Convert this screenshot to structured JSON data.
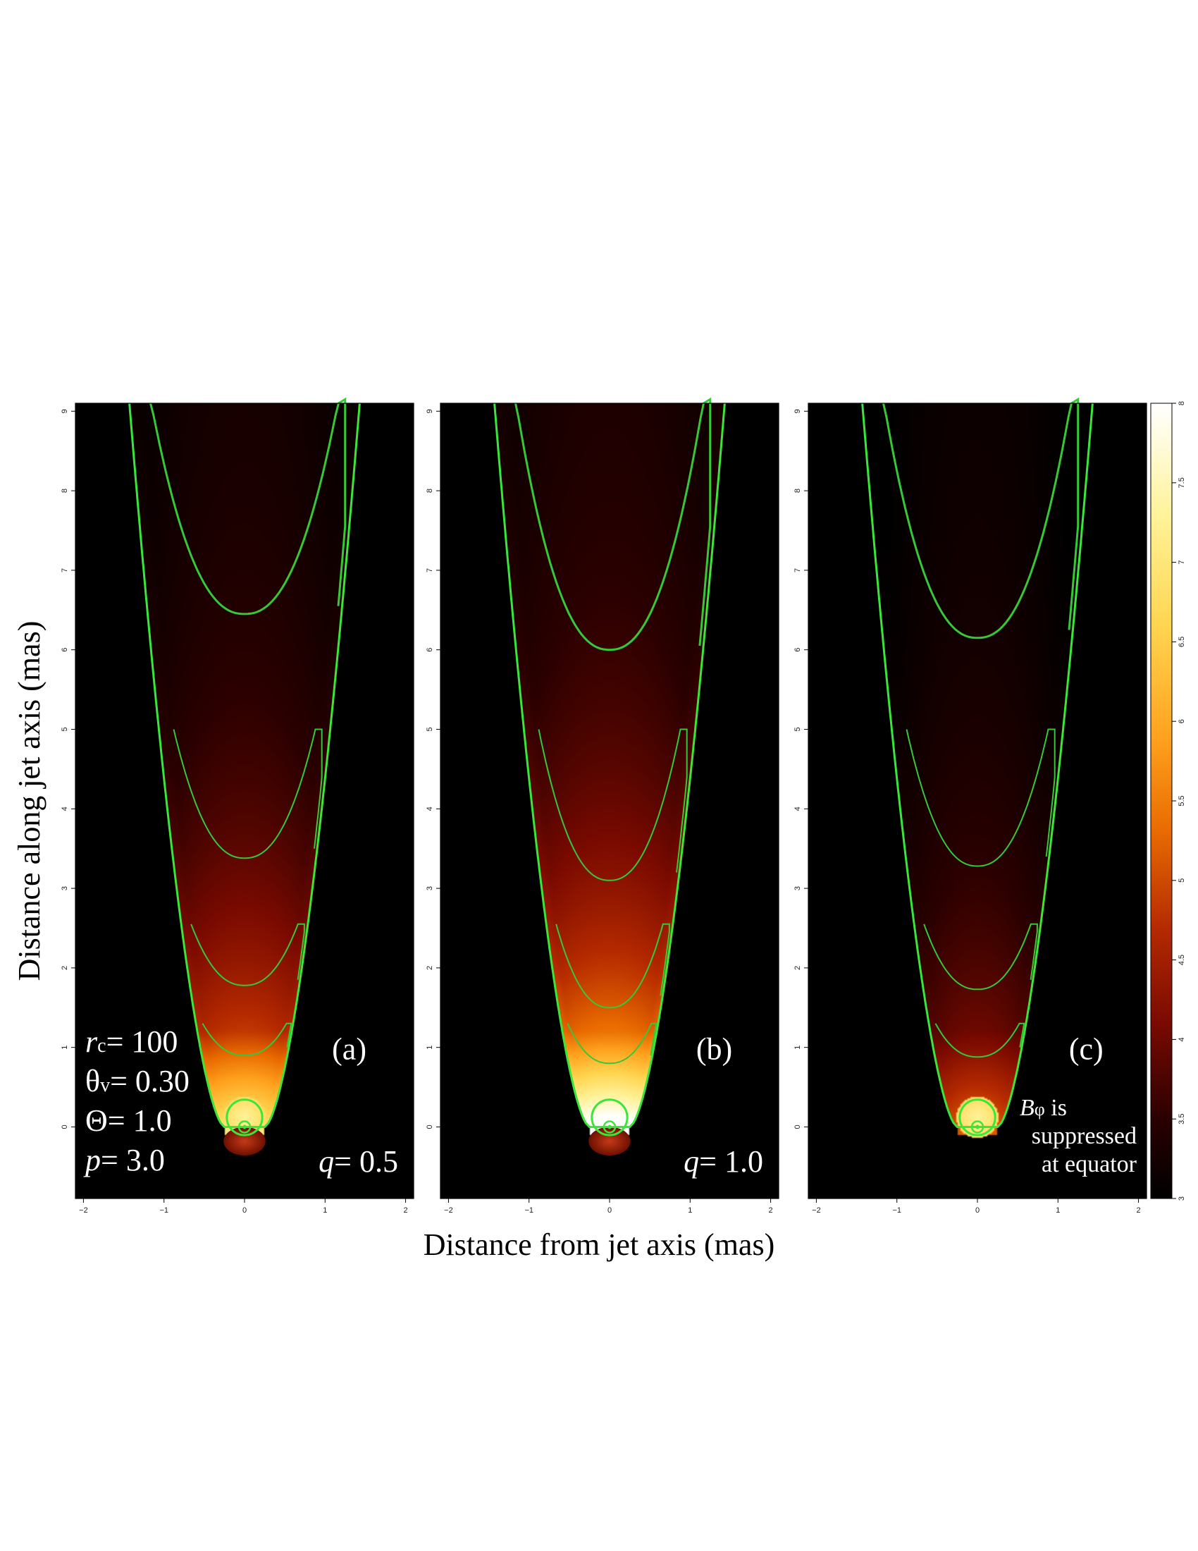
{
  "chart_data": {
    "type": "heatmap",
    "xlabel": "Distance from jet axis (mas)",
    "ylabel": "Distance along jet axis (mas)",
    "xlim": [
      -2.1,
      2.1
    ],
    "ylim": [
      -0.9,
      9.1
    ],
    "x_ticks": [
      -2,
      -1,
      0,
      1,
      2
    ],
    "y_ticks": [
      0,
      1,
      2,
      3,
      4,
      5,
      6,
      7,
      8,
      9
    ],
    "colorbar": {
      "range": [
        3,
        8
      ],
      "ticks": [
        "3",
        "3.5",
        "4",
        "4.5",
        "5",
        "5.5",
        "6",
        "6.5",
        "7",
        "7.5",
        "8"
      ]
    },
    "panels": [
      {
        "label": "(a)",
        "annotation": "q= 0.5",
        "parameters": [
          "r_c= 100",
          "θ_v= 0.30",
          "Θ= 1.0",
          "p= 3.0"
        ],
        "brightness": 1.0,
        "contour_apex": [
          6.45,
          3.38,
          1.78,
          0.9
        ]
      },
      {
        "label": "(b)",
        "annotation": "q= 1.0",
        "brightness": 1.3,
        "contour_apex": [
          6.0,
          3.1,
          1.5,
          0.8
        ]
      },
      {
        "label": "(c)",
        "annotation_lines": [
          "Bφ is",
          "suppressed",
          "at equator"
        ],
        "brightness": 0.55,
        "contour_apex": [
          6.15,
          3.28,
          1.73,
          0.88
        ]
      }
    ]
  }
}
